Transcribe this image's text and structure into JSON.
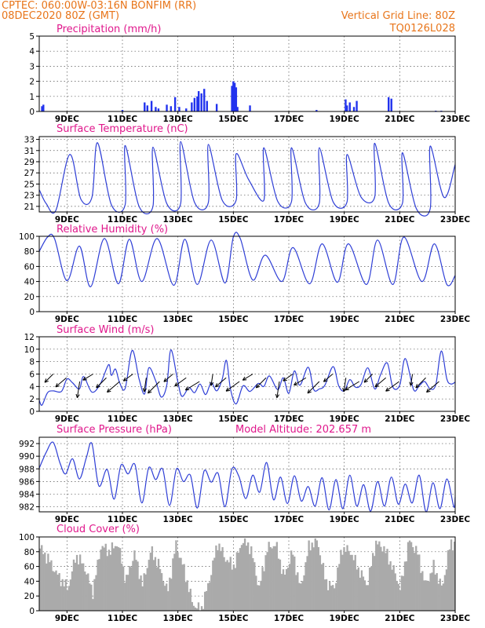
{
  "header": {
    "line1_left": "CPTEC:   060:00W-03:16N   BONFIM (RR)",
    "line2_left": "08DEC2020 80Z (GMT)",
    "line1_right": "Vertical Grid Line: 80Z",
    "line2_right": "TQ0126L028"
  },
  "colors": {
    "line": "#2f3fd6",
    "bar": "#2233ee",
    "cloud": "#aaaaaa",
    "header": "#e8751a",
    "title": "#e0188c"
  },
  "x_tick_labels": [
    "9DEC",
    "11DEC",
    "13DEC",
    "15DEC",
    "17DEC",
    "19DEC",
    "21DEC",
    "23DEC"
  ],
  "chart_data": [
    {
      "id": "precip",
      "type": "bar",
      "title": "Precipitation (mm/h)",
      "xlim": [
        0,
        15
      ],
      "ylim": [
        0,
        5
      ],
      "yticks": [
        0,
        1,
        2,
        3,
        4,
        5
      ],
      "x": [
        0.1,
        0.15,
        3.0,
        3.8,
        3.9,
        4.05,
        4.2,
        4.3,
        4.6,
        4.75,
        4.9,
        5.05,
        5.3,
        5.5,
        5.6,
        5.7,
        5.75,
        5.85,
        5.95,
        6.05,
        6.4,
        6.95,
        7.0,
        7.05,
        7.1,
        7.15,
        7.6,
        10.0,
        11.05,
        11.1,
        11.2,
        11.35,
        11.45,
        12.6,
        12.7,
        14.3,
        14.5
      ],
      "values": [
        0.35,
        0.45,
        0.1,
        0.6,
        0.4,
        0.7,
        0.3,
        0.2,
        0.45,
        0.35,
        0.95,
        0.3,
        0.2,
        0.6,
        0.9,
        1.0,
        1.35,
        1.2,
        1.5,
        0.7,
        0.5,
        1.7,
        2.0,
        1.9,
        1.6,
        0.3,
        0.4,
        0.1,
        0.8,
        0.4,
        0.6,
        0.3,
        0.7,
        0.95,
        0.85,
        0.05,
        0.05
      ]
    },
    {
      "id": "temp",
      "type": "line",
      "title": "Surface Temperature (nC)",
      "xlim": [
        0,
        15
      ],
      "ylim": [
        20,
        33.5
      ],
      "yticks": [
        21,
        23,
        25,
        27,
        29,
        31,
        33
      ],
      "x": [
        0.0,
        0.25,
        0.6,
        1.1,
        1.5,
        1.9,
        2.1,
        2.6,
        3.1,
        3.1,
        3.6,
        4.1,
        4.1,
        4.6,
        5.1,
        5.1,
        5.6,
        6.1,
        6.1,
        6.6,
        7.1,
        7.1,
        7.55,
        8.1,
        8.1,
        8.6,
        9.1,
        9.1,
        9.6,
        10.1,
        10.1,
        10.6,
        11.1,
        11.1,
        11.6,
        12.1,
        12.1,
        12.6,
        13.1,
        13.1,
        13.6,
        14.1,
        14.1,
        14.6,
        15.0
      ],
      "values": [
        24.0,
        21.5,
        20.3,
        30.3,
        22.3,
        22.6,
        32.4,
        21.3,
        21.3,
        31.9,
        21.0,
        21.0,
        31.6,
        21.5,
        21.5,
        32.6,
        21.7,
        21.7,
        32.1,
        22.1,
        22.1,
        30.4,
        25.8,
        22.1,
        31.5,
        21.9,
        21.9,
        31.5,
        21.6,
        21.6,
        31.5,
        21.8,
        21.8,
        30.3,
        22.7,
        22.7,
        32.3,
        21.6,
        21.6,
        30.6,
        20.6,
        20.6,
        31.8,
        22.6,
        28.5
      ]
    },
    {
      "id": "rh",
      "type": "line",
      "title": "Relative Humidity (%)",
      "xlim": [
        0,
        15
      ],
      "ylim": [
        0,
        100
      ],
      "yticks": [
        0,
        20,
        40,
        60,
        80,
        100
      ],
      "x": [
        0.0,
        0.3,
        0.55,
        1.0,
        1.45,
        1.85,
        2.35,
        2.85,
        3.25,
        3.7,
        4.25,
        4.85,
        5.25,
        5.7,
        6.2,
        6.7,
        7.0,
        7.25,
        7.7,
        8.15,
        8.75,
        9.15,
        9.75,
        10.2,
        10.75,
        11.15,
        11.8,
        12.2,
        12.75,
        13.15,
        13.8,
        14.25,
        14.7,
        15.0
      ],
      "values": [
        80,
        99,
        97,
        41,
        87,
        33,
        97,
        37,
        96,
        40,
        97,
        35,
        96,
        36,
        95,
        38,
        99,
        97,
        42,
        75,
        40,
        85,
        37,
        90,
        39,
        90,
        36,
        95,
        36,
        99,
        40,
        90,
        36,
        48
      ]
    },
    {
      "id": "wind",
      "type": "line",
      "title": "Surface Wind (m/s)",
      "xlim": [
        0,
        15
      ],
      "ylim": [
        0,
        12
      ],
      "yticks": [
        0,
        2,
        4,
        6,
        8,
        10,
        12
      ],
      "x": [
        0.0,
        0.1,
        0.3,
        0.5,
        0.8,
        1.0,
        1.2,
        1.45,
        1.6,
        1.9,
        2.2,
        2.5,
        2.6,
        2.75,
        2.9,
        3.1,
        3.35,
        3.6,
        3.8,
        3.95,
        4.2,
        4.4,
        4.6,
        4.75,
        5.0,
        5.15,
        5.4,
        5.6,
        5.8,
        6.0,
        6.2,
        6.4,
        6.6,
        6.75,
        6.9,
        7.1,
        7.35,
        7.6,
        7.9,
        8.1,
        8.3,
        8.6,
        8.8,
        9.0,
        9.2,
        9.4,
        9.7,
        9.9,
        10.1,
        10.3,
        10.6,
        10.8,
        11.0,
        11.2,
        11.4,
        11.6,
        11.85,
        12.1,
        12.3,
        12.55,
        12.75,
        13.0,
        13.2,
        13.5,
        13.7,
        13.9,
        14.1,
        14.3,
        14.5,
        14.7,
        14.85,
        15.0
      ],
      "values": [
        1.8,
        1.0,
        3.0,
        3.3,
        3.2,
        5.2,
        4.6,
        3.6,
        5.6,
        3.1,
        4.4,
        7.5,
        5.8,
        6.8,
        4.6,
        3.7,
        9.8,
        5.2,
        2.8,
        7.0,
        4.9,
        2.3,
        4.2,
        9.9,
        4.7,
        2.4,
        3.8,
        3.0,
        4.4,
        2.7,
        4.6,
        3.3,
        5.2,
        8.2,
        3.5,
        1.2,
        4.1,
        3.2,
        4.5,
        4.0,
        5.7,
        3.5,
        5.4,
        2.9,
        6.5,
        4.2,
        7.1,
        3.5,
        3.6,
        4.2,
        7.2,
        4.1,
        3.3,
        5.1,
        3.9,
        4.3,
        7.0,
        3.6,
        5.8,
        7.8,
        3.9,
        4.2,
        8.5,
        3.5,
        4.1,
        4.8,
        3.6,
        4.3,
        9.7,
        5.2,
        4.4,
        4.7
      ]
    },
    {
      "id": "pressure",
      "type": "line",
      "title": "Surface Pressure (hPa)",
      "subtitle": "Model Altitude: 202.657 m",
      "xlim": [
        0,
        15
      ],
      "ylim": [
        981.2,
        993
      ],
      "yticks": [
        982,
        984,
        986,
        988,
        990,
        992
      ],
      "x": [
        0.0,
        0.25,
        0.5,
        0.75,
        0.95,
        1.2,
        1.45,
        1.7,
        1.9,
        2.15,
        2.45,
        2.7,
        2.95,
        3.2,
        3.45,
        3.7,
        3.95,
        4.2,
        4.45,
        4.7,
        4.95,
        5.2,
        5.45,
        5.7,
        5.95,
        6.2,
        6.45,
        6.7,
        6.95,
        7.2,
        7.45,
        7.7,
        7.95,
        8.2,
        8.45,
        8.7,
        8.95,
        9.2,
        9.45,
        9.7,
        9.95,
        10.2,
        10.45,
        10.7,
        10.95,
        11.2,
        11.45,
        11.7,
        11.95,
        12.2,
        12.45,
        12.7,
        12.95,
        13.2,
        13.45,
        13.7,
        13.95,
        14.2,
        14.45,
        14.7,
        14.95,
        15.0
      ],
      "values": [
        988.1,
        990.6,
        992.2,
        988.9,
        987.2,
        989.6,
        986.4,
        989.8,
        992.0,
        985.3,
        987.9,
        983.2,
        988.6,
        987.2,
        988.7,
        982.6,
        988.2,
        986.3,
        988.0,
        982.2,
        988.0,
        986.0,
        987.0,
        981.8,
        987.7,
        985.9,
        987.3,
        982.0,
        988.0,
        986.8,
        983.3,
        987.0,
        984.3,
        989.0,
        983.1,
        986.7,
        982.5,
        986.9,
        982.9,
        985.2,
        982.1,
        986.6,
        981.5,
        986.3,
        981.7,
        987.0,
        982.1,
        985.5,
        981.3,
        986.0,
        982.1,
        986.7,
        982.4,
        985.6,
        982.6,
        987.0,
        981.2,
        985.8,
        981.7,
        986.4,
        982.0,
        983.5
      ]
    },
    {
      "id": "cloud",
      "type": "area",
      "title": "Cloud Cover (%)",
      "xlim": [
        0,
        15
      ],
      "ylim": [
        0,
        100
      ],
      "yticks": [
        0,
        20,
        40,
        60,
        80,
        100
      ],
      "x": [
        0.0,
        0.3,
        0.6,
        1.0,
        1.3,
        1.6,
        1.9,
        2.2,
        2.5,
        2.8,
        3.1,
        3.4,
        3.7,
        4.0,
        4.3,
        4.6,
        4.9,
        5.2,
        5.5,
        5.8,
        6.1,
        6.4,
        6.7,
        7.0,
        7.3,
        7.6,
        7.9,
        8.2,
        8.5,
        8.8,
        9.1,
        9.4,
        9.7,
        10.0,
        10.3,
        10.6,
        10.9,
        11.2,
        11.5,
        11.8,
        12.1,
        12.4,
        12.7,
        13.0,
        13.3,
        13.6,
        13.9,
        14.2,
        14.5,
        14.8,
        15.0
      ],
      "values": [
        85,
        70,
        50,
        30,
        75,
        60,
        25,
        88,
        80,
        92,
        40,
        78,
        35,
        82,
        60,
        25,
        90,
        55,
        10,
        0,
        40,
        92,
        70,
        60,
        96,
        85,
        30,
        85,
        90,
        45,
        80,
        30,
        88,
        95,
        40,
        30,
        85,
        80,
        55,
        35,
        92,
        85,
        60,
        30,
        95,
        80,
        35,
        60,
        30,
        92,
        90
      ]
    }
  ]
}
